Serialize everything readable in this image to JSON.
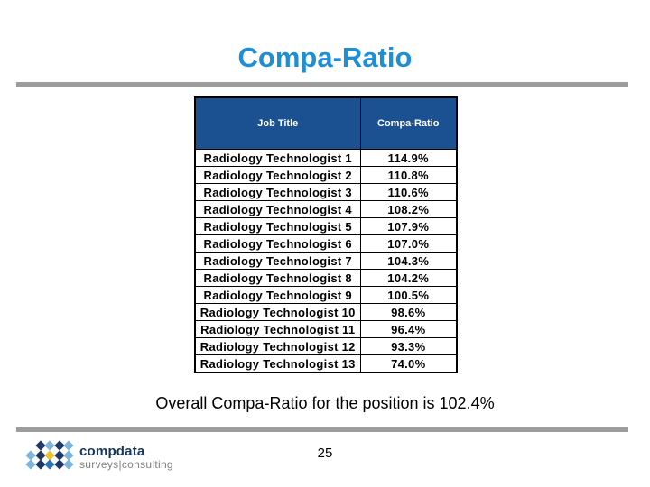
{
  "slide": {
    "title": "Compa-Ratio",
    "overall_text": "Overall Compa-Ratio for the position is 102.4%",
    "page_number": "25"
  },
  "table": {
    "headers": [
      "Job Title",
      "Compa-Ratio"
    ],
    "rows": [
      [
        "Radiology Technologist 1",
        "114.9%"
      ],
      [
        "Radiology Technologist 2",
        "110.8%"
      ],
      [
        "Radiology Technologist 3",
        "110.6%"
      ],
      [
        "Radiology Technologist 4",
        "108.2%"
      ],
      [
        "Radiology Technologist 5",
        "107.9%"
      ],
      [
        "Radiology Technologist 6",
        "107.0%"
      ],
      [
        "Radiology Technologist 7",
        "104.3%"
      ],
      [
        "Radiology Technologist 8",
        "104.2%"
      ],
      [
        "Radiology Technologist 9",
        "100.5%"
      ],
      [
        "Radiology Technologist 10",
        "98.6%"
      ],
      [
        "Radiology Technologist 11",
        "96.4%"
      ],
      [
        "Radiology Technologist 12",
        "93.3%"
      ],
      [
        "Radiology Technologist 13",
        "74.0%"
      ]
    ]
  },
  "logo": {
    "name": "compdata",
    "tagline": "surveys|consulting",
    "mark_icon": "diamond-x-mark",
    "mark": [
      [
        1,
        0,
        "navy"
      ],
      [
        2,
        0,
        "light"
      ],
      [
        3,
        0,
        "navy"
      ],
      [
        4,
        0,
        "light"
      ],
      [
        0,
        1,
        "light"
      ],
      [
        1,
        1,
        "navy"
      ],
      [
        2,
        1,
        "yellow"
      ],
      [
        3,
        1,
        "navy"
      ],
      [
        4,
        1,
        "light"
      ],
      [
        0,
        2,
        "light"
      ],
      [
        1,
        2,
        "navy"
      ],
      [
        2,
        2,
        "mid"
      ],
      [
        3,
        2,
        "navy"
      ],
      [
        4,
        2,
        "light"
      ]
    ]
  },
  "colors": {
    "title_blue": "#1E8FD5",
    "header_blue": "#1C5191",
    "divider_gray": "#9D9D9D",
    "logo_text_navy": "#17365D",
    "logo_tagline_gray": "#808080",
    "logo_navy": "#1F3864",
    "logo_mid": "#2E75B6",
    "logo_light": "#7EB5DC",
    "logo_yellow": "#F0C12E"
  }
}
